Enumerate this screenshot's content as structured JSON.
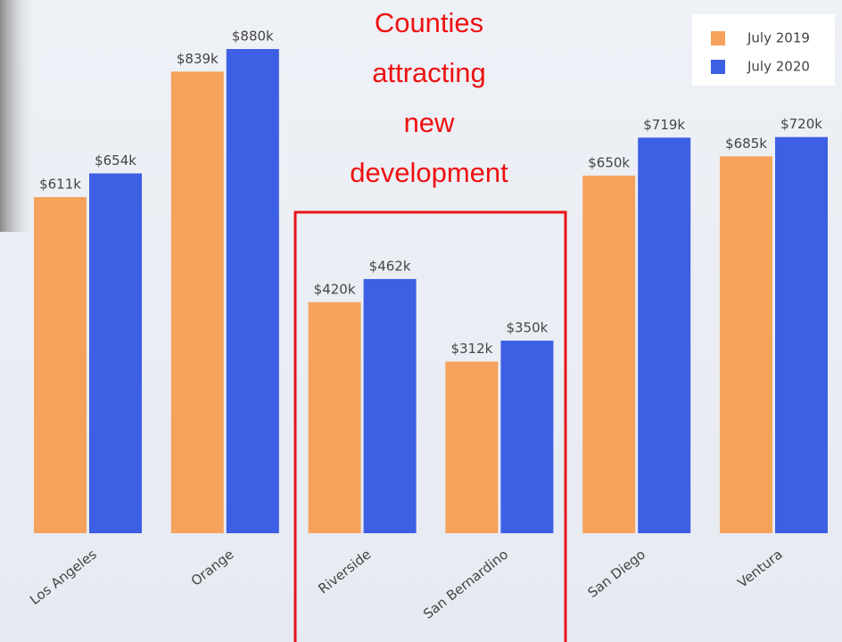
{
  "chart_data": {
    "type": "bar",
    "categories": [
      "Los Angeles",
      "Orange",
      "Riverside",
      "San Bernardino",
      "San Diego",
      "Ventura"
    ],
    "series": [
      {
        "name": "July 2019",
        "color": "#f5a35c",
        "values": [
          611,
          839,
          420,
          312,
          650,
          685
        ],
        "value_labels": [
          "$611k",
          "$839k",
          "$420k",
          "$312k",
          "$650k",
          "$685k"
        ]
      },
      {
        "name": "July 2020",
        "color": "#3d5fe3",
        "values": [
          654,
          880,
          462,
          350,
          719,
          720
        ],
        "value_labels": [
          "$654k",
          "$880k",
          "$462k",
          "$350k",
          "$719k",
          "$720k"
        ]
      }
    ],
    "annotation_lines": [
      "Counties",
      "attracting",
      "new",
      "development"
    ],
    "legend": "top-right"
  }
}
